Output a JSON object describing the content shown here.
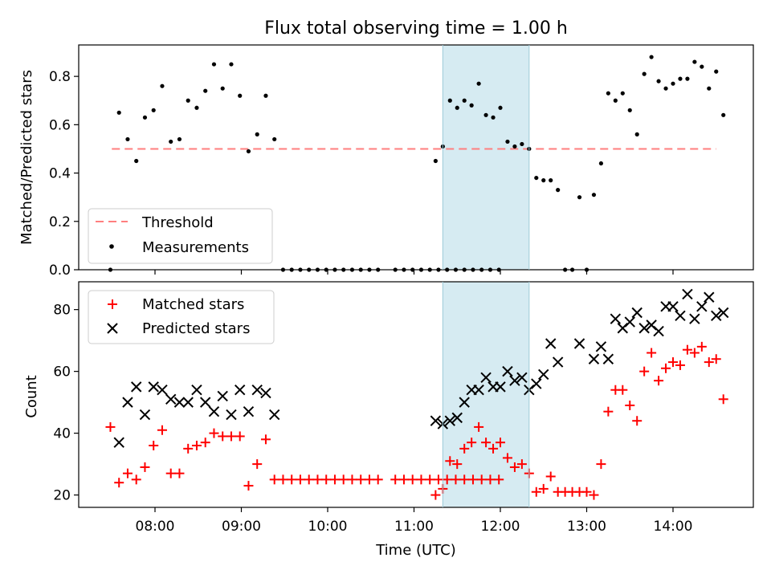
{
  "title": "Flux total observing time = 1.00 h",
  "xlabel": "Time (UTC)",
  "xticks": [
    "08:00",
    "09:00",
    "10:00",
    "11:00",
    "12:00",
    "13:00",
    "14:00"
  ],
  "highlight": {
    "start": "11:20",
    "end": "12:20",
    "color": "#add8e6"
  },
  "chart_data": [
    {
      "type": "scatter",
      "ylabel": "Matched/Predicted stars",
      "ylim": [
        0,
        0.93
      ],
      "yticks": [
        0.0,
        0.2,
        0.4,
        0.6,
        0.8
      ],
      "legend": "lower-left",
      "threshold": {
        "name": "Threshold",
        "value": 0.5,
        "x_range": [
          "07:30",
          "14:30"
        ],
        "color": "#ff7f7f"
      },
      "series": [
        {
          "name": "Measurements",
          "marker": "dot",
          "color": "#000000",
          "points": [
            [
              "07:29",
              0.0
            ],
            [
              "07:35",
              0.65
            ],
            [
              "07:41",
              0.54
            ],
            [
              "07:47",
              0.45
            ],
            [
              "07:53",
              0.63
            ],
            [
              "07:59",
              0.66
            ],
            [
              "08:05",
              0.76
            ],
            [
              "08:11",
              0.53
            ],
            [
              "08:17",
              0.54
            ],
            [
              "08:23",
              0.7
            ],
            [
              "08:29",
              0.67
            ],
            [
              "08:35",
              0.74
            ],
            [
              "08:41",
              0.85
            ],
            [
              "08:47",
              0.75
            ],
            [
              "08:53",
              0.85
            ],
            [
              "08:59",
              0.72
            ],
            [
              "09:05",
              0.49
            ],
            [
              "09:11",
              0.56
            ],
            [
              "09:17",
              0.72
            ],
            [
              "09:23",
              0.54
            ],
            [
              "09:29",
              0.0
            ],
            [
              "09:35",
              0.0
            ],
            [
              "09:41",
              0.0
            ],
            [
              "09:47",
              0.0
            ],
            [
              "09:53",
              0.0
            ],
            [
              "09:59",
              0.0
            ],
            [
              "10:05",
              0.0
            ],
            [
              "10:11",
              0.0
            ],
            [
              "10:17",
              0.0
            ],
            [
              "10:23",
              0.0
            ],
            [
              "10:29",
              0.0
            ],
            [
              "10:35",
              0.0
            ],
            [
              "10:47",
              0.0
            ],
            [
              "10:53",
              0.0
            ],
            [
              "10:59",
              0.0
            ],
            [
              "11:05",
              0.0
            ],
            [
              "11:11",
              0.0
            ],
            [
              "11:17",
              0.0
            ],
            [
              "11:23",
              0.0
            ],
            [
              "11:29",
              0.0
            ],
            [
              "11:35",
              0.0
            ],
            [
              "11:41",
              0.0
            ],
            [
              "11:47",
              0.0
            ],
            [
              "11:53",
              0.0
            ],
            [
              "11:59",
              0.0
            ],
            [
              "11:15",
              0.45
            ],
            [
              "11:20",
              0.51
            ],
            [
              "11:25",
              0.7
            ],
            [
              "11:30",
              0.67
            ],
            [
              "11:35",
              0.7
            ],
            [
              "11:40",
              0.68
            ],
            [
              "11:45",
              0.77
            ],
            [
              "11:50",
              0.64
            ],
            [
              "11:55",
              0.63
            ],
            [
              "12:00",
              0.67
            ],
            [
              "12:05",
              0.53
            ],
            [
              "12:10",
              0.51
            ],
            [
              "12:15",
              0.52
            ],
            [
              "12:20",
              0.5
            ],
            [
              "12:25",
              0.38
            ],
            [
              "12:30",
              0.37
            ],
            [
              "12:35",
              0.37
            ],
            [
              "12:40",
              0.33
            ],
            [
              "12:45",
              0.0
            ],
            [
              "12:50",
              0.0
            ],
            [
              "12:55",
              0.3
            ],
            [
              "13:00",
              0.0
            ],
            [
              "13:05",
              0.31
            ],
            [
              "13:10",
              0.44
            ],
            [
              "13:15",
              0.73
            ],
            [
              "13:20",
              0.7
            ],
            [
              "13:25",
              0.73
            ],
            [
              "13:30",
              0.66
            ],
            [
              "13:35",
              0.56
            ],
            [
              "13:40",
              0.81
            ],
            [
              "13:45",
              0.88
            ],
            [
              "13:50",
              0.78
            ],
            [
              "13:55",
              0.75
            ],
            [
              "14:00",
              0.77
            ],
            [
              "14:05",
              0.79
            ],
            [
              "14:10",
              0.79
            ],
            [
              "14:15",
              0.86
            ],
            [
              "14:20",
              0.84
            ],
            [
              "14:25",
              0.75
            ],
            [
              "14:30",
              0.82
            ],
            [
              "14:35",
              0.64
            ]
          ]
        }
      ]
    },
    {
      "type": "scatter",
      "ylabel": "Count",
      "ylim": [
        16,
        89
      ],
      "yticks": [
        20,
        40,
        60,
        80
      ],
      "legend": "upper-left",
      "series": [
        {
          "name": "Matched stars",
          "marker": "plus",
          "color": "#ff0000",
          "points": [
            [
              "07:29",
              42
            ],
            [
              "07:35",
              24
            ],
            [
              "07:41",
              27
            ],
            [
              "07:47",
              25
            ],
            [
              "07:53",
              29
            ],
            [
              "07:59",
              36
            ],
            [
              "08:05",
              41
            ],
            [
              "08:11",
              27
            ],
            [
              "08:17",
              27
            ],
            [
              "08:23",
              35
            ],
            [
              "08:29",
              36
            ],
            [
              "08:35",
              37
            ],
            [
              "08:41",
              40
            ],
            [
              "08:47",
              39
            ],
            [
              "08:53",
              39
            ],
            [
              "08:59",
              39
            ],
            [
              "09:05",
              23
            ],
            [
              "09:11",
              30
            ],
            [
              "09:17",
              38
            ],
            [
              "09:23",
              25
            ],
            [
              "09:29",
              25
            ],
            [
              "09:35",
              25
            ],
            [
              "09:41",
              25
            ],
            [
              "09:47",
              25
            ],
            [
              "09:53",
              25
            ],
            [
              "09:59",
              25
            ],
            [
              "10:05",
              25
            ],
            [
              "10:11",
              25
            ],
            [
              "10:17",
              25
            ],
            [
              "10:23",
              25
            ],
            [
              "10:29",
              25
            ],
            [
              "10:35",
              25
            ],
            [
              "10:47",
              25
            ],
            [
              "10:53",
              25
            ],
            [
              "10:59",
              25
            ],
            [
              "11:05",
              25
            ],
            [
              "11:11",
              25
            ],
            [
              "11:17",
              25
            ],
            [
              "11:23",
              25
            ],
            [
              "11:29",
              25
            ],
            [
              "11:35",
              25
            ],
            [
              "11:41",
              25
            ],
            [
              "11:47",
              25
            ],
            [
              "11:53",
              25
            ],
            [
              "11:59",
              25
            ],
            [
              "11:15",
              20
            ],
            [
              "11:20",
              22
            ],
            [
              "11:25",
              31
            ],
            [
              "11:30",
              30
            ],
            [
              "11:35",
              35
            ],
            [
              "11:40",
              37
            ],
            [
              "11:45",
              42
            ],
            [
              "11:50",
              37
            ],
            [
              "11:55",
              35
            ],
            [
              "12:00",
              37
            ],
            [
              "12:05",
              32
            ],
            [
              "12:10",
              29
            ],
            [
              "12:15",
              30
            ],
            [
              "12:20",
              27
            ],
            [
              "12:25",
              21
            ],
            [
              "12:30",
              22
            ],
            [
              "12:35",
              26
            ],
            [
              "12:40",
              21
            ],
            [
              "12:45",
              21
            ],
            [
              "12:50",
              21
            ],
            [
              "12:55",
              21
            ],
            [
              "13:00",
              21
            ],
            [
              "13:05",
              20
            ],
            [
              "13:10",
              30
            ],
            [
              "13:15",
              47
            ],
            [
              "13:20",
              54
            ],
            [
              "13:25",
              54
            ],
            [
              "13:30",
              49
            ],
            [
              "13:35",
              44
            ],
            [
              "13:40",
              60
            ],
            [
              "13:45",
              66
            ],
            [
              "13:50",
              57
            ],
            [
              "13:55",
              61
            ],
            [
              "14:00",
              63
            ],
            [
              "14:05",
              62
            ],
            [
              "14:10",
              67
            ],
            [
              "14:15",
              66
            ],
            [
              "14:20",
              68
            ],
            [
              "14:25",
              63
            ],
            [
              "14:30",
              64
            ],
            [
              "14:35",
              51
            ]
          ]
        },
        {
          "name": "Predicted stars",
          "marker": "x",
          "color": "#000000",
          "points": [
            [
              "07:35",
              37
            ],
            [
              "07:41",
              50
            ],
            [
              "07:47",
              55
            ],
            [
              "07:53",
              46
            ],
            [
              "07:59",
              55
            ],
            [
              "08:05",
              54
            ],
            [
              "08:11",
              51
            ],
            [
              "08:17",
              50
            ],
            [
              "08:23",
              50
            ],
            [
              "08:29",
              54
            ],
            [
              "08:35",
              50
            ],
            [
              "08:41",
              47
            ],
            [
              "08:47",
              52
            ],
            [
              "08:53",
              46
            ],
            [
              "08:59",
              54
            ],
            [
              "09:05",
              47
            ],
            [
              "09:11",
              54
            ],
            [
              "09:17",
              53
            ],
            [
              "09:23",
              46
            ],
            [
              "11:15",
              44
            ],
            [
              "11:20",
              43
            ],
            [
              "11:25",
              44
            ],
            [
              "11:30",
              45
            ],
            [
              "11:35",
              50
            ],
            [
              "11:40",
              54
            ],
            [
              "11:45",
              54
            ],
            [
              "11:50",
              58
            ],
            [
              "11:55",
              55
            ],
            [
              "12:00",
              55
            ],
            [
              "12:05",
              60
            ],
            [
              "12:10",
              57
            ],
            [
              "12:15",
              58
            ],
            [
              "12:20",
              54
            ],
            [
              "12:25",
              56
            ],
            [
              "12:30",
              59
            ],
            [
              "12:35",
              69
            ],
            [
              "12:40",
              63
            ],
            [
              "12:55",
              69
            ],
            [
              "13:05",
              64
            ],
            [
              "13:10",
              68
            ],
            [
              "13:15",
              64
            ],
            [
              "13:20",
              77
            ],
            [
              "13:25",
              74
            ],
            [
              "13:30",
              76
            ],
            [
              "13:35",
              79
            ],
            [
              "13:40",
              74
            ],
            [
              "13:45",
              75
            ],
            [
              "13:50",
              73
            ],
            [
              "13:55",
              81
            ],
            [
              "14:00",
              81
            ],
            [
              "14:05",
              78
            ],
            [
              "14:10",
              85
            ],
            [
              "14:15",
              77
            ],
            [
              "14:20",
              81
            ],
            [
              "14:25",
              84
            ],
            [
              "14:30",
              78
            ],
            [
              "14:35",
              79
            ]
          ]
        }
      ]
    }
  ]
}
